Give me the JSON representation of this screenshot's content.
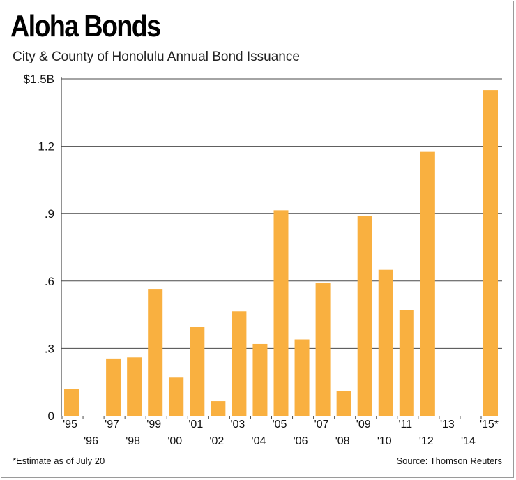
{
  "header": {
    "title": "Aloha Bonds",
    "subtitle": "City & County of Honolulu Annual Bond Issuance"
  },
  "footer": {
    "note": "*Estimate as of July 20",
    "source": "Source: Thomson Reuters"
  },
  "colors": {
    "bar": "#F9B040",
    "grid": "#4a4a4a",
    "text": "#111111"
  },
  "chart_data": {
    "type": "bar",
    "title": "Aloha Bonds",
    "subtitle": "City & County of Honolulu Annual Bond Issuance",
    "categories": [
      "'95",
      "'96",
      "'97",
      "'98",
      "'99",
      "'00",
      "'01",
      "'02",
      "'03",
      "'04",
      "'05",
      "'06",
      "'07",
      "'08",
      "'09",
      "'10",
      "'11",
      "'12",
      "'13",
      "'14",
      "'15*"
    ],
    "values": [
      0.12,
      0,
      0.255,
      0.26,
      0.565,
      0.17,
      0.395,
      0.065,
      0.465,
      0.32,
      0.915,
      0.34,
      0.59,
      0.11,
      0.89,
      0.65,
      0.47,
      1.175,
      0,
      0,
      1.45
    ],
    "ylim": [
      0,
      1.5
    ],
    "yticks": [
      0,
      0.3,
      0.6,
      0.9,
      1.2,
      1.5
    ],
    "ytick_labels": [
      "0",
      ".3",
      ".6",
      ".9",
      "1.2",
      "$1.5B"
    ],
    "xlabel": "",
    "ylabel": "",
    "grid": true,
    "legend": "none"
  }
}
